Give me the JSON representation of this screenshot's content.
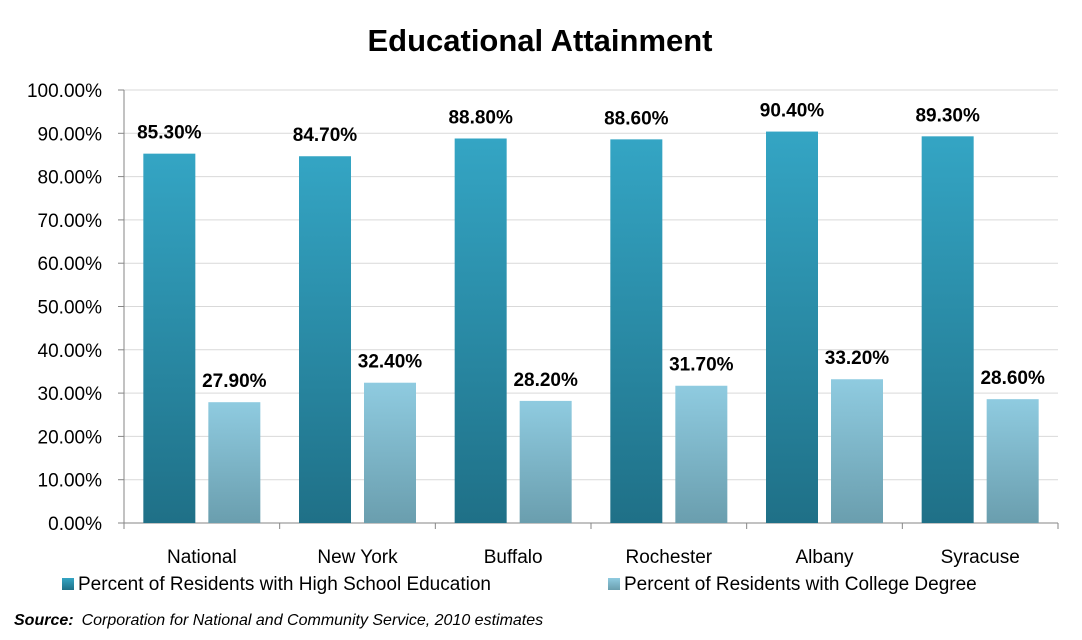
{
  "chart_data": {
    "type": "bar",
    "title": "Educational Attainment",
    "categories": [
      "National",
      "New York",
      "Buffalo",
      "Rochester",
      "Albany",
      "Syracuse"
    ],
    "series": [
      {
        "name": "Percent of Residents with High School Education",
        "values": [
          85.3,
          84.7,
          88.8,
          88.6,
          90.4,
          89.3
        ],
        "labels": [
          "85.30%",
          "84.70%",
          "88.80%",
          "88.60%",
          "90.40%",
          "89.30%"
        ],
        "color": "#2E9AB8"
      },
      {
        "name": "Percent of Residents with College Degree",
        "values": [
          27.9,
          32.4,
          28.2,
          31.7,
          33.2,
          28.6
        ],
        "labels": [
          "27.90%",
          "32.40%",
          "28.20%",
          "31.70%",
          "33.20%",
          "28.60%"
        ],
        "color": "#86C4DA"
      }
    ],
    "ylim": [
      0,
      100
    ],
    "yticks": [
      "0.00%",
      "10.00%",
      "20.00%",
      "30.00%",
      "40.00%",
      "50.00%",
      "60.00%",
      "70.00%",
      "80.00%",
      "90.00%",
      "100.00%"
    ],
    "grid": true,
    "legend_position": "bottom"
  },
  "source": {
    "label": "Source:",
    "text": "Corporation for National and Community Service, 2010 estimates"
  }
}
